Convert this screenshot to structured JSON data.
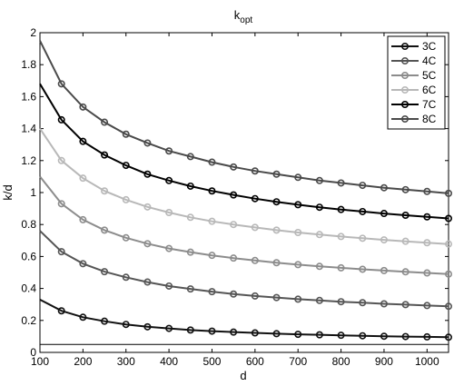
{
  "chart_data": {
    "type": "line",
    "title": "k",
    "title_subscript": "opt",
    "xlabel": "d",
    "ylabel": "k/d",
    "xlim": [
      100,
      1050
    ],
    "ylim": [
      0,
      2
    ],
    "xticks": [
      "100",
      "200",
      "300",
      "400",
      "500",
      "600",
      "700",
      "800",
      "900",
      "1000"
    ],
    "yticks": [
      "0",
      "0.2",
      "0.4",
      "0.6",
      "0.8",
      "1",
      "1.2",
      "1.4",
      "1.6",
      "1.8",
      "2"
    ],
    "reference_line_y": 0.05,
    "grid": false,
    "legend_placement": "top-right",
    "x": [
      100,
      150,
      200,
      250,
      300,
      350,
      400,
      450,
      500,
      550,
      600,
      650,
      700,
      750,
      800,
      850,
      900,
      950,
      1000,
      1050
    ],
    "series": [
      {
        "name": "3C",
        "color": "#111111",
        "values": [
          0.33,
          0.26,
          0.22,
          0.195,
          0.175,
          0.16,
          0.15,
          0.14,
          0.133,
          0.127,
          0.122,
          0.117,
          0.113,
          0.11,
          0.107,
          0.104,
          0.101,
          0.099,
          0.097,
          0.095
        ]
      },
      {
        "name": "4C",
        "color": "#555555",
        "values": [
          0.76,
          0.63,
          0.555,
          0.505,
          0.47,
          0.44,
          0.415,
          0.397,
          0.38,
          0.365,
          0.353,
          0.343,
          0.333,
          0.325,
          0.317,
          0.311,
          0.304,
          0.299,
          0.293,
          0.288
        ]
      },
      {
        "name": "5C",
        "color": "#8c8c8c",
        "values": [
          1.1,
          0.93,
          0.83,
          0.765,
          0.717,
          0.68,
          0.65,
          0.627,
          0.607,
          0.59,
          0.575,
          0.561,
          0.549,
          0.538,
          0.529,
          0.52,
          0.512,
          0.504,
          0.497,
          0.49
        ]
      },
      {
        "name": "6C",
        "color": "#b8b8b8",
        "values": [
          1.4,
          1.2,
          1.09,
          1.01,
          0.955,
          0.91,
          0.875,
          0.845,
          0.82,
          0.8,
          0.782,
          0.765,
          0.75,
          0.737,
          0.725,
          0.714,
          0.704,
          0.695,
          0.686,
          0.678
        ]
      },
      {
        "name": "7C",
        "color": "#000000",
        "values": [
          1.68,
          1.455,
          1.32,
          1.235,
          1.17,
          1.115,
          1.075,
          1.04,
          1.01,
          0.985,
          0.962,
          0.942,
          0.924,
          0.908,
          0.894,
          0.881,
          0.869,
          0.858,
          0.848,
          0.838
        ]
      },
      {
        "name": "8C",
        "color": "#4a4a4a",
        "values": [
          1.95,
          1.68,
          1.535,
          1.44,
          1.365,
          1.31,
          1.26,
          1.225,
          1.19,
          1.16,
          1.135,
          1.115,
          1.095,
          1.075,
          1.06,
          1.045,
          1.03,
          1.018,
          1.007,
          0.995
        ]
      }
    ]
  }
}
